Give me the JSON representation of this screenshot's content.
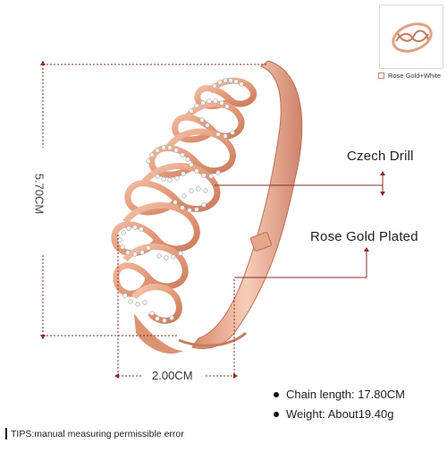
{
  "thumbnail": {
    "icon": "bracelet-thumbnail-icon"
  },
  "option": {
    "label": "Rose Gold+White"
  },
  "dimensions": {
    "height": "5.70CM",
    "width": "2.00CM"
  },
  "callouts": {
    "drill": "Czech Drill",
    "plating": "Rose Gold Plated"
  },
  "specs": [
    {
      "text": "Chain length: 17.80CM"
    },
    {
      "text": "Weight: About19.40g"
    }
  ],
  "tips": "TIPS:manual measuring permissible error",
  "colors": {
    "rose_gold": "#e9a586",
    "rose_gold_dark": "#c77d62",
    "guide": "#8a2b2b",
    "stone": "#f4f4f4"
  }
}
